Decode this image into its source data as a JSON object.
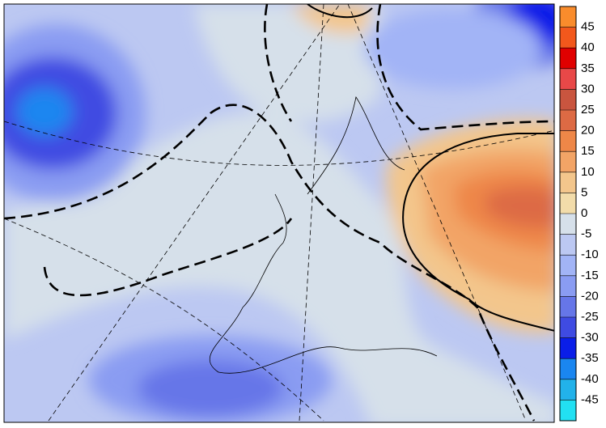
{
  "colorbar": {
    "levels": [
      45,
      40,
      35,
      30,
      25,
      20,
      15,
      10,
      5,
      0,
      -5,
      -10,
      -15,
      -20,
      -25,
      -30,
      -35,
      -40,
      -45
    ],
    "colors": [
      "#f98c2c",
      "#f2581c",
      "#e00000",
      "#e84848",
      "#c9553f",
      "#dd6a44",
      "#ee8748",
      "#f2a466",
      "#f3c68c",
      "#f2dcaa",
      "#d6e0ea",
      "#bcc8f2",
      "#a2b4f6",
      "#8a9cf2",
      "#6676e8",
      "#3f4be2",
      "#0a1ee8",
      "#1a86f0",
      "#22b2ea",
      "#22e0f2"
    ]
  }
}
